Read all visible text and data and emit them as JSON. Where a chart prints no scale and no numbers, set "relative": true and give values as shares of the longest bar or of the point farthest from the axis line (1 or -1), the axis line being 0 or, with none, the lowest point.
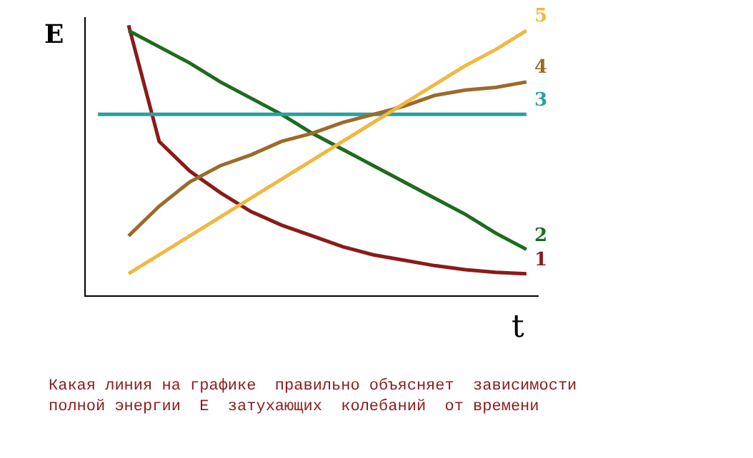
{
  "chart_data": {
    "type": "line",
    "relative": true,
    "xlabel": "t",
    "ylabel": "E",
    "categories": [
      null,
      null,
      null,
      null,
      null,
      null,
      null,
      null,
      null,
      null,
      null,
      null,
      null,
      null,
      null
    ],
    "series": [
      {
        "name": "1",
        "color": "#8b1a1a",
        "values": [
          null,
          1.0,
          0.57,
          0.46,
          0.38,
          0.31,
          0.26,
          0.22,
          0.18,
          0.15,
          0.13,
          0.11,
          0.095,
          0.085,
          0.08
        ]
      },
      {
        "name": "2",
        "color": "#1e6b1e",
        "values": [
          null,
          0.98,
          0.92,
          0.86,
          0.79,
          0.73,
          0.67,
          0.6,
          0.54,
          0.48,
          0.42,
          0.36,
          0.3,
          0.23,
          0.17
        ]
      },
      {
        "name": "3",
        "color": "#2aa0a0",
        "values": [
          0.67,
          0.67,
          0.67,
          0.67,
          0.67,
          0.67,
          0.67,
          0.67,
          0.67,
          0.67,
          0.67,
          0.67,
          0.67,
          0.67,
          0.67
        ]
      },
      {
        "name": "4",
        "color": "#9b6a2a",
        "values": [
          null,
          0.22,
          0.33,
          0.42,
          0.48,
          0.52,
          0.57,
          0.6,
          0.64,
          0.67,
          0.7,
          0.74,
          0.76,
          0.77,
          0.79
        ]
      },
      {
        "name": "5",
        "color": "#f0b840",
        "values": [
          null,
          0.08,
          0.15,
          0.22,
          0.29,
          0.36,
          0.43,
          0.5,
          0.57,
          0.64,
          0.71,
          0.78,
          0.85,
          0.91,
          0.98
        ]
      }
    ],
    "annotations": [
      "Какая линия на графике  правильно объясняет  зависимости\nполной энергии  E  затухающих  колебаний  от времени"
    ],
    "legend": false,
    "marker": "none",
    "line_style": "solid"
  }
}
